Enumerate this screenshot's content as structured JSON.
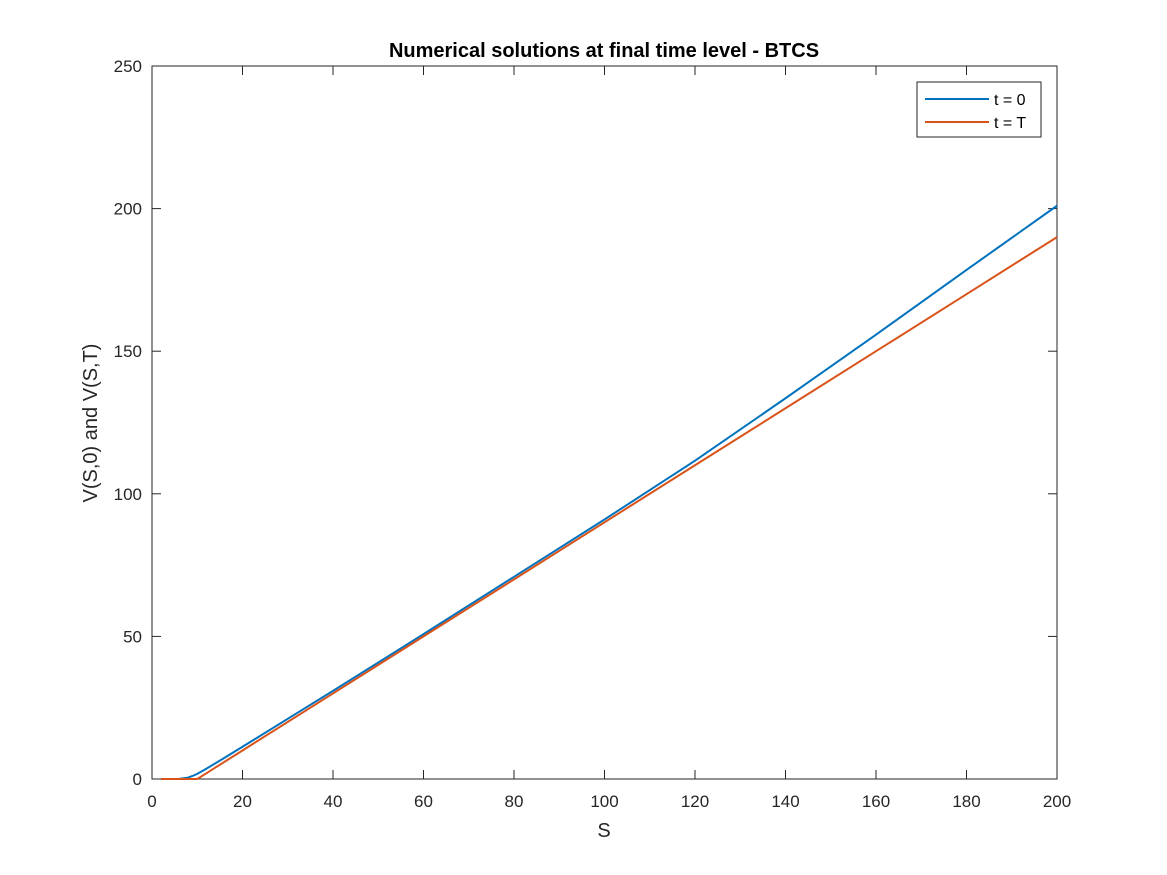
{
  "chart_data": {
    "type": "line",
    "title": "Numerical solutions at final time level - BTCS",
    "xlabel": "S",
    "ylabel": "V(S,0) and V(S,T)",
    "xlim": [
      0,
      200
    ],
    "ylim": [
      0,
      250
    ],
    "xticks": [
      "0",
      "20",
      "40",
      "60",
      "80",
      "100",
      "120",
      "140",
      "160",
      "180",
      "200"
    ],
    "yticks": [
      "0",
      "50",
      "100",
      "150",
      "200",
      "250"
    ],
    "grid": false,
    "legend_position": "top-right",
    "series": [
      {
        "name": "t = 0",
        "color": "#0072BD",
        "x": [
          2,
          4,
          6,
          8,
          9,
          10,
          12,
          14,
          16,
          20,
          30,
          40,
          60,
          80,
          100,
          120,
          140,
          160,
          180,
          200
        ],
        "y": [
          0,
          0,
          0.05,
          0.5,
          1.1,
          1.8,
          3.6,
          5.5,
          7.4,
          11.3,
          21.1,
          30.9,
          50.8,
          70.9,
          91.0,
          111.6,
          133.5,
          155.8,
          178.5,
          201
        ]
      },
      {
        "name": "t = T",
        "color": "#D95319",
        "x": [
          2,
          4,
          6,
          8,
          10,
          12,
          14,
          20,
          40,
          60,
          80,
          100,
          120,
          140,
          160,
          180,
          200
        ],
        "y": [
          0,
          0,
          0,
          0,
          0,
          2.0,
          4.0,
          10.0,
          30.0,
          50.0,
          70.0,
          90.0,
          110.0,
          130.0,
          150.0,
          170.0,
          190.0
        ]
      }
    ]
  }
}
